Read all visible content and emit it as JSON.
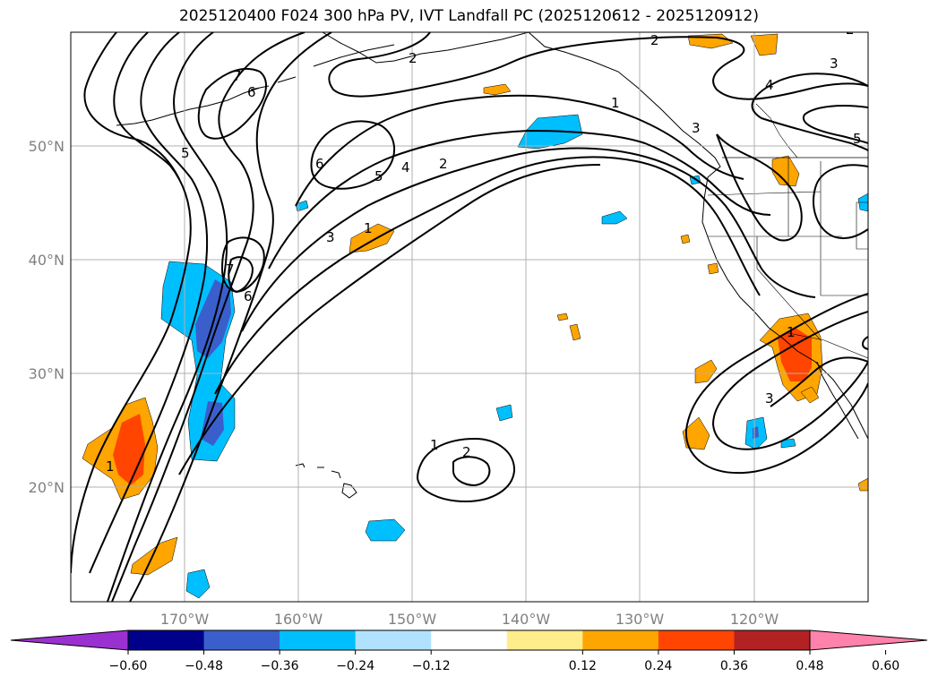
{
  "title": "2025120400 F024 300 hPa PV, IVT Landfall PC (2025120612 - 2025120912)",
  "map": {
    "lon_range": [
      -180,
      -110
    ],
    "lat_range": [
      10,
      60
    ],
    "lat_labels": [
      "50°N",
      "40°N",
      "30°N",
      "20°N"
    ],
    "lon_labels": [
      "170°W",
      "160°W",
      "150°W",
      "140°W",
      "130°W",
      "120°W"
    ],
    "contour_labels": [
      "2",
      "2",
      "4",
      "5",
      "3",
      "1",
      "2",
      "1",
      "3",
      "4",
      "5",
      "6",
      "7",
      "6",
      "5",
      "7",
      "6",
      "3",
      "2",
      "1",
      "2",
      "1",
      "3",
      "1"
    ]
  },
  "colorbar": {
    "ticks": [
      "−0.60",
      "−0.48",
      "−0.36",
      "−0.24",
      "−0.12",
      "0.12",
      "0.24",
      "0.36",
      "0.48",
      "0.60"
    ],
    "colors": [
      "#9b30d0",
      "#00008b",
      "#3a5fcd",
      "#00bfff",
      "#b0e2ff",
      "#ffffff",
      "#ffec8b",
      "#ffa500",
      "#ff4500",
      "#b22222",
      "#ff82ab"
    ]
  },
  "colors": {
    "negative_strong": "#3a5fcd",
    "negative": "#00bfff",
    "positive": "#ffa500",
    "positive_strong": "#ff4500",
    "contour": "#000000",
    "grid": "#b0b0b0"
  }
}
